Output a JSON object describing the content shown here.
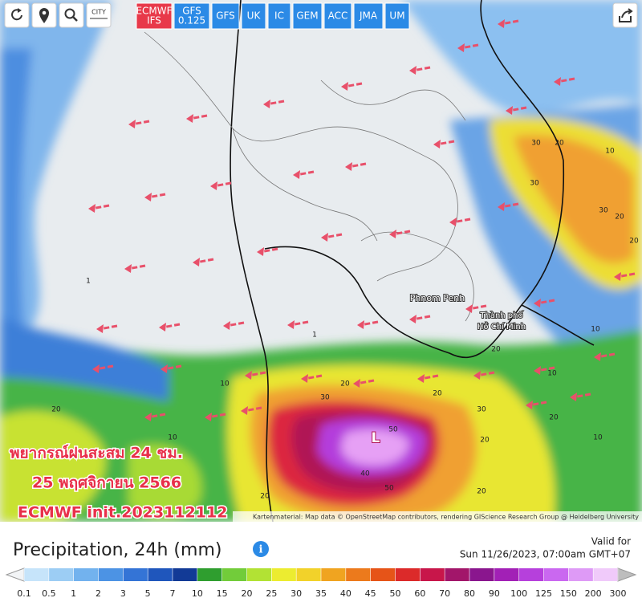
{
  "toolbar": {
    "city": "CITY",
    "models": [
      {
        "name": "ECMWF",
        "sub": "IFS",
        "active": true
      },
      {
        "name": "GFS",
        "sub": "0.125"
      },
      {
        "name": "GFS"
      },
      {
        "name": "UK"
      },
      {
        "name": "IC"
      },
      {
        "name": "GEM"
      },
      {
        "name": "ACC"
      },
      {
        "name": "JMA"
      },
      {
        "name": "UM"
      }
    ]
  },
  "map": {
    "places": [
      "Phnom Penh"
    ],
    "hcmc": [
      "Thành phố",
      "Hồ Chí Minh"
    ],
    "low_label": "L",
    "contours": [
      30,
      20,
      10,
      30,
      30,
      20,
      20,
      10,
      10,
      20,
      30,
      20,
      20,
      20,
      30,
      20,
      50,
      50,
      40,
      10,
      20,
      10,
      20,
      10,
      20,
      1,
      1
    ],
    "overlay": [
      "พยากรณ์ฝนสะสม  24 ชม.",
      "25 พฤศจิกายน 2566",
      "ECMWF init.2023112112"
    ],
    "attribution": "Kartenmaterial: Map data © OpenStreetMap contributors, rendering GIScience Research Group @ Heidelberg University"
  },
  "panel": {
    "title": "Precipitation, 24h (mm)",
    "valid_label": "Valid for",
    "valid_time": "Sun 11/26/2023, 07:00am GMT+07"
  },
  "legend": {
    "items": [
      {
        "value": 0.1,
        "color": "#c6e4fa"
      },
      {
        "value": 0.5,
        "color": "#9ccdf4"
      },
      {
        "value": 1,
        "color": "#72b2ee"
      },
      {
        "value": 2,
        "color": "#4c93e4"
      },
      {
        "value": 3,
        "color": "#3474d6"
      },
      {
        "value": 5,
        "color": "#1f56bc"
      },
      {
        "value": 7,
        "color": "#123a96"
      },
      {
        "value": 10,
        "color": "#2f9e2f"
      },
      {
        "value": 15,
        "color": "#72cc3a"
      },
      {
        "value": 20,
        "color": "#b2e234"
      },
      {
        "value": 25,
        "color": "#ecec30"
      },
      {
        "value": 30,
        "color": "#f2d22a"
      },
      {
        "value": 35,
        "color": "#f0a420"
      },
      {
        "value": 40,
        "color": "#ec7a1c"
      },
      {
        "value": 45,
        "color": "#e65418"
      },
      {
        "value": 50,
        "color": "#dc2a2a"
      },
      {
        "value": 60,
        "color": "#c8164a"
      },
      {
        "value": 70,
        "color": "#a2166a"
      },
      {
        "value": 80,
        "color": "#8a168e"
      },
      {
        "value": 90,
        "color": "#a220b6"
      },
      {
        "value": 100,
        "color": "#b640dc"
      },
      {
        "value": 125,
        "color": "#ca68f0"
      },
      {
        "value": 150,
        "color": "#de9af6"
      },
      {
        "value": 200,
        "color": "#f0cafa"
      },
      {
        "value": 300,
        "color": "#bdbdbd"
      }
    ]
  }
}
